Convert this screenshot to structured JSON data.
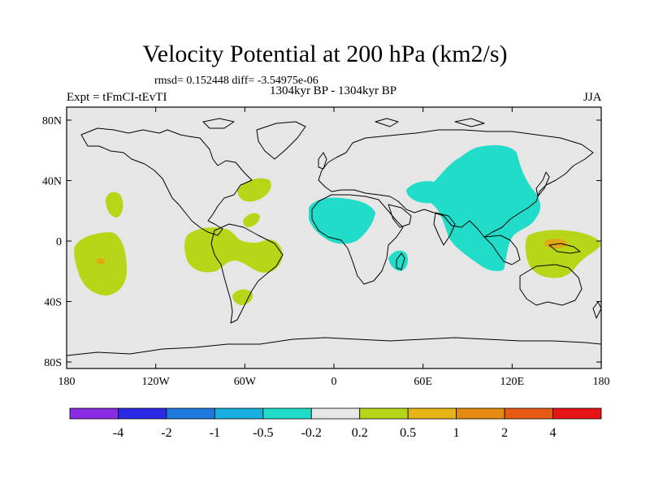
{
  "title": "Velocity Potential at 200 hPa (km2/s)",
  "stats": "rmsd= 0.152448  diff= -3.54975e-06",
  "left_label": "Expt = tFmCI-tEvTI",
  "center_label": "1304kyr BP - 1304kyr BP",
  "right_label": "JJA",
  "lat_ticks": [
    "80N",
    "40N",
    "0",
    "40S",
    "80S"
  ],
  "lon_ticks": [
    "180",
    "120W",
    "60W",
    "0",
    "60E",
    "120E",
    "180"
  ],
  "colorbar": {
    "colors": [
      "#8b2be2",
      "#2a2ae6",
      "#1e78e0",
      "#18b0e0",
      "#20dcc8",
      "#e6e6e6",
      "#b8d618",
      "#e6b414",
      "#e68a14",
      "#e65a14",
      "#e61414"
    ],
    "labels": [
      "-4",
      "-2",
      "-1",
      "-0.5",
      "-0.2",
      "0.2",
      "0.5",
      "1",
      "2",
      "4"
    ]
  },
  "map": {
    "background": "#e6e6e6",
    "positive_color": "#b8d618",
    "negative_color": "#20dcc8",
    "strong_positive_color": "#e6a014"
  }
}
